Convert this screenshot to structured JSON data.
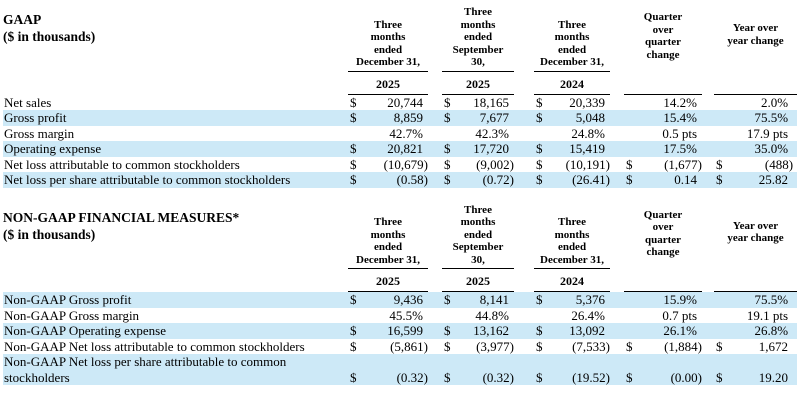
{
  "colors": {
    "stripe": "#cde9f7",
    "text": "#000000",
    "background": "#ffffff",
    "rule": "#000000"
  },
  "columns": {
    "periods": [
      {
        "label": "Three\nmonths\nended\nDecember 31,",
        "year": "2025"
      },
      {
        "label": "Three\nmonths\nended\nSeptember\n30,",
        "year": "2025"
      },
      {
        "label": "Three\nmonths\nended\nDecember 31,",
        "year": "2024"
      }
    ],
    "change_cols": [
      "Quarter\nover\nquarter\nchange",
      "Year over\nyear change"
    ]
  },
  "gaap": {
    "title": "GAAP",
    "subtitle": "($ in thousands)",
    "first_row_shaded": false,
    "rows": [
      {
        "label": "Net sales",
        "cells": [
          [
            "$",
            "20,744"
          ],
          [
            "$",
            "18,165"
          ],
          [
            "$",
            "20,339"
          ],
          [
            "",
            "14.2%"
          ],
          [
            "",
            "2.0%"
          ]
        ]
      },
      {
        "label": "Gross profit",
        "cells": [
          [
            "$",
            "8,859"
          ],
          [
            "$",
            "7,677"
          ],
          [
            "$",
            "5,048"
          ],
          [
            "",
            "15.4%"
          ],
          [
            "",
            "75.5%"
          ]
        ]
      },
      {
        "label": "Gross margin",
        "cells": [
          [
            "",
            "42.7%"
          ],
          [
            "",
            "42.3%"
          ],
          [
            "",
            "24.8%"
          ],
          [
            "",
            "0.5 pts"
          ],
          [
            "",
            "17.9 pts"
          ]
        ]
      },
      {
        "label": "Operating expense",
        "cells": [
          [
            "$",
            "20,821"
          ],
          [
            "$",
            "17,720"
          ],
          [
            "$",
            "15,419"
          ],
          [
            "",
            "17.5%"
          ],
          [
            "",
            "35.0%"
          ]
        ]
      },
      {
        "label": "Net loss attributable to common stockholders",
        "cells": [
          [
            "$",
            "(10,679)"
          ],
          [
            "$",
            "(9,002)"
          ],
          [
            "$",
            "(10,191)"
          ],
          [
            "$",
            "(1,677)"
          ],
          [
            "$",
            "(488)"
          ]
        ]
      },
      {
        "label": "Net loss per share attributable to common stockholders",
        "cells": [
          [
            "$",
            "(0.58)"
          ],
          [
            "$",
            "(0.72)"
          ],
          [
            "$",
            "(26.41)"
          ],
          [
            "$",
            "0.14"
          ],
          [
            "$",
            "25.82"
          ]
        ]
      }
    ]
  },
  "non_gaap": {
    "title": "NON-GAAP FINANCIAL MEASURES*",
    "subtitle": "($ in thousands)",
    "first_row_shaded": true,
    "rows": [
      {
        "label": "Non-GAAP Gross profit",
        "cells": [
          [
            "$",
            "9,436"
          ],
          [
            "$",
            "8,141"
          ],
          [
            "$",
            "5,376"
          ],
          [
            "",
            "15.9%"
          ],
          [
            "",
            "75.5%"
          ]
        ]
      },
      {
        "label": "Non-GAAP Gross margin",
        "cells": [
          [
            "",
            "45.5%"
          ],
          [
            "",
            "44.8%"
          ],
          [
            "",
            "26.4%"
          ],
          [
            "",
            "0.7 pts"
          ],
          [
            "",
            "19.1 pts"
          ]
        ]
      },
      {
        "label": "Non-GAAP Operating expense",
        "cells": [
          [
            "$",
            "16,599"
          ],
          [
            "$",
            "13,162"
          ],
          [
            "$",
            "13,092"
          ],
          [
            "",
            "26.1%"
          ],
          [
            "",
            "26.8%"
          ]
        ]
      },
      {
        "label": "Non-GAAP Net loss attributable to common stockholders",
        "cells": [
          [
            "$",
            "(5,861)"
          ],
          [
            "$",
            "(3,977)"
          ],
          [
            "$",
            "(7,533)"
          ],
          [
            "$",
            "(1,884)"
          ],
          [
            "$",
            "1,672"
          ]
        ]
      },
      {
        "label": "Non-GAAP Net loss per share attributable to common stockholders",
        "cells": [
          [
            "$",
            "(0.32)"
          ],
          [
            "$",
            "(0.32)"
          ],
          [
            "$",
            "(19.52)"
          ],
          [
            "$",
            "(0.00)"
          ],
          [
            "$",
            "19.20"
          ]
        ]
      }
    ]
  }
}
